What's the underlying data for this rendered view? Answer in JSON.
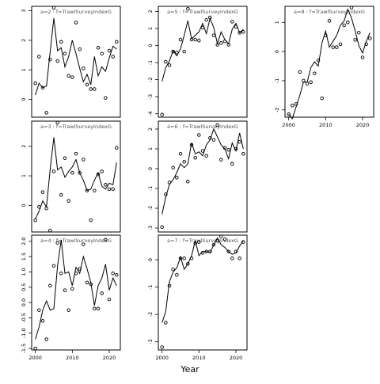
{
  "chart_data": {
    "type": "line",
    "xlabel": "Year",
    "xlim": [
      1999,
      2023
    ],
    "xticks": [
      2000,
      2010,
      2020
    ],
    "panels": [
      {
        "title": "a=2 : f=TrawlSurveyIndexG",
        "ylim": [
          -0.6,
          3.15
        ],
        "yticks": [
          0,
          1,
          2,
          3
        ],
        "fit": {
          "x": [
            2000,
            2001,
            2002,
            2003,
            2004,
            2005,
            2006,
            2007,
            2008,
            2009,
            2010,
            2011,
            2012,
            2013,
            2014,
            2015,
            2016,
            2017,
            2018,
            2019,
            2020,
            2021,
            2022
          ],
          "y": [
            0.15,
            0.55,
            0.4,
            0.45,
            1.6,
            2.75,
            1.65,
            1.75,
            1.1,
            1.45,
            2.0,
            1.55,
            1.05,
            0.6,
            0.85,
            0.5,
            1.45,
            0.8,
            1.1,
            0.95,
            1.4,
            1.8,
            1.7
          ]
        },
        "points": {
          "x": [
            2000,
            2001,
            2002,
            2003,
            2004,
            2005,
            2006,
            2007,
            2008,
            2009,
            2010,
            2011,
            2012,
            2013,
            2014,
            2015,
            2016,
            2017,
            2018,
            2019,
            2020,
            2021,
            2022
          ],
          "y": [
            0.55,
            1.45,
            0.4,
            -0.45,
            1.35,
            3.1,
            1.3,
            1.95,
            1.55,
            0.8,
            0.75,
            2.6,
            1.7,
            1.05,
            0.5,
            0.35,
            0.35,
            1.75,
            1.55,
            0.05,
            1.65,
            1.45,
            1.95
          ]
        }
      },
      {
        "title": "a=3 : f=TrawlSurveyIndexG",
        "ylim": [
          -0.9,
          2.85
        ],
        "yticks": [
          0,
          1,
          2
        ],
        "fit": {
          "x": [
            2000,
            2001,
            2002,
            2003,
            2004,
            2005,
            2006,
            2007,
            2008,
            2009,
            2010,
            2011,
            2012,
            2013,
            2014,
            2015,
            2016,
            2017,
            2018,
            2019,
            2020,
            2021,
            2022
          ],
          "y": [
            -0.45,
            -0.2,
            0.15,
            -0.05,
            1.2,
            2.3,
            1.2,
            1.3,
            0.95,
            1.15,
            1.3,
            1.55,
            1.1,
            0.85,
            0.5,
            0.55,
            0.85,
            1.1,
            0.65,
            0.55,
            0.75,
            0.7,
            1.45
          ]
        },
        "points": {
          "x": [
            2000,
            2001,
            2002,
            2003,
            2004,
            2005,
            2006,
            2007,
            2008,
            2009,
            2010,
            2011,
            2012,
            2013,
            2014,
            2015,
            2016,
            2017,
            2018,
            2019,
            2020,
            2021,
            2022
          ],
          "y": [
            -0.5,
            -0.05,
            0.45,
            -0.1,
            -0.85,
            1.15,
            2.8,
            0.35,
            1.6,
            0.15,
            1.1,
            1.75,
            1.1,
            1.55,
            0.5,
            -0.5,
            0.5,
            1.05,
            1.15,
            0.7,
            0.55,
            0.55,
            1.95
          ]
        }
      },
      {
        "title": "a=4 : f=TrawlSurveyIndexG",
        "ylim": [
          -1.55,
          2.2
        ],
        "yticks": [
          -1.5,
          -1.0,
          -0.5,
          0.0,
          0.5,
          1.0,
          1.5,
          2.0
        ],
        "fit": {
          "x": [
            2000,
            2001,
            2002,
            2003,
            2004,
            2005,
            2006,
            2007,
            2008,
            2009,
            2010,
            2011,
            2012,
            2013,
            2014,
            2015,
            2016,
            2017,
            2018,
            2019,
            2020,
            2021,
            2022
          ],
          "y": [
            -1.2,
            -0.8,
            -0.25,
            0.05,
            -0.25,
            -0.2,
            1.2,
            2.05,
            0.95,
            1.0,
            0.55,
            1.15,
            0.95,
            1.5,
            1.1,
            0.65,
            -0.1,
            0.55,
            0.8,
            1.25,
            0.4,
            0.8,
            0.55
          ]
        },
        "points": {
          "x": [
            2000,
            2001,
            2002,
            2003,
            2004,
            2005,
            2006,
            2007,
            2008,
            2009,
            2010,
            2011,
            2012,
            2013,
            2014,
            2015,
            2016,
            2017,
            2018,
            2019,
            2020,
            2021,
            2022
          ],
          "y": [
            -1.5,
            -0.25,
            -0.6,
            -1.2,
            0.55,
            1.2,
            1.95,
            0.95,
            0.4,
            -0.25,
            0.45,
            0.95,
            1.1,
            1.9,
            0.65,
            0.6,
            -0.2,
            -0.2,
            0.3,
            2.05,
            0.1,
            0.95,
            0.9
          ]
        }
      },
      {
        "title": "a=5 : f=TrawlSurveyIndexG",
        "ylim": [
          -4.2,
          2.3
        ],
        "yticks": [
          -4,
          -3,
          -2,
          -1,
          0,
          1,
          2
        ],
        "fit": {
          "x": [
            2000,
            2001,
            2002,
            2003,
            2004,
            2005,
            2006,
            2007,
            2008,
            2009,
            2010,
            2011,
            2012,
            2013,
            2014,
            2015,
            2016,
            2017,
            2018,
            2019,
            2020,
            2021,
            2022
          ],
          "y": [
            -2.1,
            -1.3,
            -0.9,
            -0.3,
            -0.6,
            -0.2,
            0.6,
            1.45,
            0.4,
            0.6,
            0.8,
            1.3,
            0.7,
            1.6,
            1.05,
            0.1,
            0.8,
            0.35,
            0.1,
            0.95,
            1.3,
            0.75,
            0.95
          ]
        },
        "points": {
          "x": [
            2000,
            2001,
            2002,
            2003,
            2004,
            2005,
            2006,
            2007,
            2008,
            2009,
            2010,
            2011,
            2012,
            2013,
            2014,
            2015,
            2016,
            2017,
            2018,
            2019,
            2020,
            2021,
            2022
          ],
          "y": [
            -4.05,
            -0.95,
            -1.15,
            -0.35,
            -0.4,
            0.35,
            -0.35,
            2.15,
            0.35,
            0.35,
            0.3,
            1.05,
            1.5,
            1.65,
            0.6,
            0.05,
            0.15,
            0.25,
            0.05,
            1.4,
            1.1,
            0.75,
            0.8
          ]
        }
      },
      {
        "title": "a=6 : f=TrawlSurveyIndexG",
        "ylim": [
          -3.2,
          2.4
        ],
        "yticks": [
          -3,
          -2,
          -1,
          0,
          1,
          2
        ],
        "fit": {
          "x": [
            2000,
            2001,
            2002,
            2003,
            2004,
            2005,
            2006,
            2007,
            2008,
            2009,
            2010,
            2011,
            2012,
            2013,
            2014,
            2015,
            2016,
            2017,
            2018,
            2019,
            2020,
            2021,
            2022
          ],
          "y": [
            -2.3,
            -1.45,
            -0.8,
            -0.55,
            -0.2,
            0.25,
            0.05,
            0.25,
            1.3,
            0.75,
            0.85,
            0.65,
            1.2,
            1.45,
            2.0,
            1.6,
            1.2,
            1.0,
            0.5,
            1.3,
            0.9,
            1.8,
            1.0
          ]
        },
        "points": {
          "x": [
            2000,
            2001,
            2002,
            2003,
            2004,
            2005,
            2006,
            2007,
            2008,
            2009,
            2010,
            2011,
            2012,
            2013,
            2014,
            2015,
            2016,
            2017,
            2018,
            2019,
            2020,
            2021,
            2022
          ],
          "y": [
            -2.95,
            -1.3,
            -0.7,
            0.05,
            -0.45,
            0.75,
            0.35,
            -0.65,
            1.2,
            0.55,
            1.7,
            0.9,
            0.65,
            1.55,
            1.45,
            2.2,
            0.45,
            1.05,
            0.95,
            0.25,
            1.0,
            1.35,
            0.75
          ]
        }
      },
      {
        "title": "a=7 : f=TrawlSurveyIndexG",
        "ylim": [
          -3.3,
          0.9
        ],
        "yticks": [
          -3,
          -2,
          -1,
          0
        ],
        "fit": {
          "x": [
            2000,
            2001,
            2002,
            2003,
            2004,
            2005,
            2006,
            2007,
            2008,
            2009,
            2010,
            2011,
            2012,
            2013,
            2014,
            2015,
            2016,
            2017,
            2018,
            2019,
            2020,
            2021,
            2022
          ],
          "y": [
            -2.3,
            -1.9,
            -0.8,
            -0.45,
            -0.3,
            0.1,
            -0.35,
            -0.15,
            0.15,
            0.7,
            0.15,
            0.3,
            0.3,
            0.25,
            0.55,
            0.8,
            0.55,
            0.45,
            0.3,
            0.2,
            0.25,
            0.5,
            0.7
          ]
        },
        "points": {
          "x": [
            2000,
            2001,
            2002,
            2003,
            2004,
            2005,
            2006,
            2007,
            2008,
            2009,
            2010,
            2011,
            2012,
            2013,
            2014,
            2015,
            2016,
            2017,
            2018,
            2019,
            2020,
            2021,
            2022
          ],
          "y": [
            -3.2,
            -2.3,
            -0.95,
            -0.35,
            -0.55,
            0.05,
            0.05,
            -0.15,
            0.05,
            0.6,
            0.65,
            0.25,
            0.3,
            0.3,
            0.55,
            0.7,
            0.85,
            0.75,
            0.3,
            0.05,
            0.3,
            0.05,
            0.65
          ]
        }
      },
      {
        "title": "a=8 : f=TrawlSurveyIndexG",
        "ylim": [
          -2.25,
          1.55
        ],
        "yticks": [
          -2,
          -1,
          0,
          1
        ],
        "fit": {
          "x": [
            2000,
            2001,
            2002,
            2003,
            2004,
            2005,
            2006,
            2007,
            2008,
            2009,
            2010,
            2011,
            2012,
            2013,
            2014,
            2015,
            2016,
            2017,
            2018,
            2019,
            2020,
            2021,
            2022
          ],
          "y": [
            -2.15,
            -2.3,
            -1.9,
            -1.5,
            -1.05,
            -1.05,
            -0.55,
            -0.35,
            -0.5,
            0.3,
            0.7,
            0.15,
            0.35,
            0.55,
            0.9,
            1.05,
            1.45,
            1.15,
            0.7,
            0.2,
            -0.05,
            0.35,
            0.65
          ]
        },
        "points": {
          "x": [
            2000,
            2001,
            2002,
            2003,
            2004,
            2005,
            2006,
            2007,
            2008,
            2009,
            2010,
            2011,
            2012,
            2013,
            2014,
            2015,
            2016,
            2017,
            2018,
            2019,
            2020,
            2021,
            2022
          ],
          "y": [
            -2.15,
            -1.85,
            -1.8,
            -0.7,
            -1.0,
            -1.1,
            -1.05,
            -0.75,
            -0.3,
            -1.6,
            0.55,
            1.05,
            0.15,
            0.15,
            0.25,
            0.9,
            1.0,
            1.5,
            0.4,
            0.65,
            -0.2,
            0.25,
            0.45
          ]
        }
      }
    ]
  }
}
